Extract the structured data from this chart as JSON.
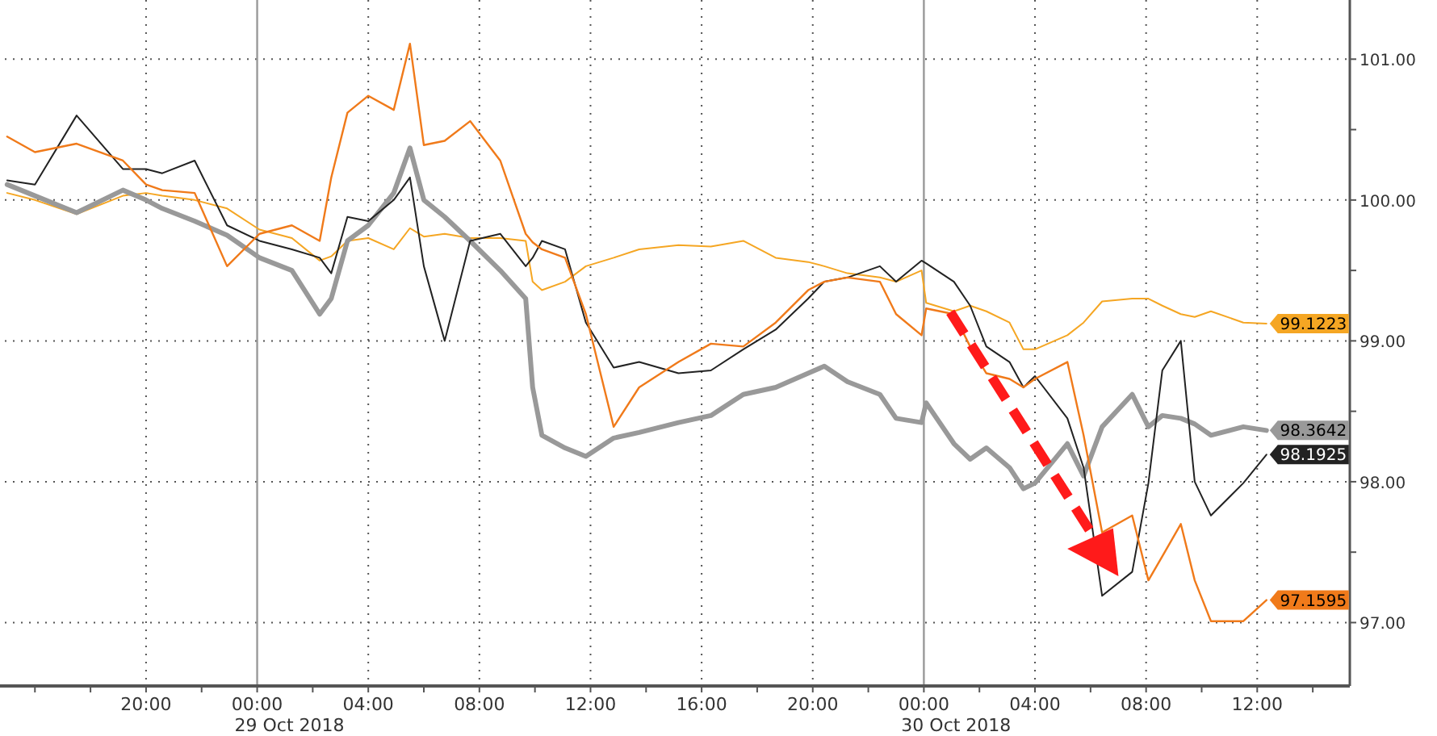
{
  "chart_data": {
    "type": "line",
    "x": [
      "2018-10-28T15:00",
      "2018-10-28T16:00",
      "2018-10-28T17:30",
      "2018-10-28T19:10",
      "2018-10-28T20:00",
      "2018-10-28T20:35",
      "2018-10-28T21:45",
      "2018-10-28T22:55",
      "2018-10-29T00:05",
      "2018-10-29T01:15",
      "2018-10-29T02:15",
      "2018-10-29T02:40",
      "2018-10-29T03:15",
      "2018-10-29T04:00",
      "2018-10-29T04:55",
      "2018-10-29T05:30",
      "2018-10-29T06:00",
      "2018-10-29T06:45",
      "2018-10-29T07:40",
      "2018-10-29T08:45",
      "2018-10-29T09:40",
      "2018-10-29T09:55",
      "2018-10-29T10:15",
      "2018-10-29T11:05",
      "2018-10-29T11:50",
      "2018-10-29T12:50",
      "2018-10-29T13:45",
      "2018-10-29T15:10",
      "2018-10-29T16:20",
      "2018-10-29T17:30",
      "2018-10-29T18:40",
      "2018-10-29T19:50",
      "2018-10-29T20:25",
      "2018-10-29T21:15",
      "2018-10-29T22:25",
      "2018-10-29T23:00",
      "2018-10-29T23:55",
      "2018-10-30T00:05",
      "2018-10-30T01:05",
      "2018-10-30T01:40",
      "2018-10-30T02:15",
      "2018-10-30T03:05",
      "2018-10-30T03:35",
      "2018-10-30T04:00",
      "2018-10-30T05:10",
      "2018-10-30T05:45",
      "2018-10-30T06:25",
      "2018-10-30T07:30",
      "2018-10-30T08:05",
      "2018-10-30T08:35",
      "2018-10-30T09:15",
      "2018-10-30T09:45",
      "2018-10-30T10:20",
      "2018-10-30T11:30",
      "2018-10-30T12:20"
    ],
    "series": [
      {
        "color": "#f5a623",
        "values": [
          100.05,
          100.0,
          99.9,
          100.03,
          100.05,
          100.03,
          100.0,
          99.94,
          99.79,
          99.73,
          99.57,
          99.6,
          99.71,
          99.73,
          99.65,
          99.8,
          99.74,
          99.76,
          99.73,
          99.73,
          99.71,
          99.42,
          99.36,
          99.42,
          99.53,
          99.59,
          99.65,
          99.68,
          99.67,
          99.71,
          99.59,
          99.56,
          99.53,
          99.48,
          99.45,
          99.42,
          99.5,
          99.27,
          99.21,
          99.25,
          99.21,
          99.13,
          98.94,
          98.94,
          99.04,
          99.13,
          99.28,
          99.3,
          99.3,
          99.25,
          99.19,
          99.17,
          99.21,
          99.13,
          99.1223
        ],
        "value_labels": [
          null,
          null,
          null,
          null,
          null,
          null,
          null,
          null,
          null,
          null,
          null,
          null,
          null,
          null,
          null,
          null,
          null,
          null,
          null,
          null,
          null,
          null,
          null,
          null,
          null,
          null,
          null,
          null,
          null,
          null,
          null,
          null,
          null,
          null,
          null,
          null,
          null,
          null,
          null,
          null,
          null,
          null,
          null,
          null,
          null,
          null,
          null,
          null,
          null,
          null,
          null,
          null,
          null,
          null,
          "99.1223"
        ]
      },
      {
        "color": "#999999",
        "values": [
          100.11,
          100.03,
          99.91,
          100.07,
          100.0,
          99.94,
          99.85,
          99.75,
          99.59,
          99.5,
          99.19,
          99.3,
          99.71,
          99.82,
          100.05,
          100.37,
          100.0,
          99.88,
          99.71,
          99.5,
          99.3,
          98.67,
          98.33,
          98.24,
          98.18,
          98.31,
          98.35,
          98.42,
          98.47,
          98.62,
          98.67,
          98.77,
          98.82,
          98.71,
          98.62,
          98.45,
          98.42,
          98.56,
          98.27,
          98.16,
          98.24,
          98.1,
          97.95,
          97.99,
          98.27,
          98.04,
          98.39,
          98.62,
          98.39,
          98.47,
          98.45,
          98.41,
          98.33,
          98.39,
          98.3642
        ],
        "value_labels": [
          null,
          null,
          null,
          null,
          null,
          null,
          null,
          null,
          null,
          null,
          null,
          null,
          null,
          null,
          null,
          null,
          null,
          null,
          null,
          null,
          null,
          null,
          null,
          null,
          null,
          null,
          null,
          null,
          null,
          null,
          null,
          null,
          null,
          null,
          null,
          null,
          null,
          null,
          null,
          null,
          null,
          null,
          null,
          null,
          null,
          null,
          null,
          null,
          null,
          null,
          null,
          null,
          null,
          null,
          "98.3642"
        ]
      },
      {
        "color": "#222222",
        "values": [
          100.14,
          100.11,
          100.6,
          100.22,
          100.22,
          100.19,
          100.28,
          99.82,
          99.71,
          99.65,
          99.59,
          99.48,
          99.88,
          99.85,
          100.0,
          100.16,
          99.53,
          99.0,
          99.71,
          99.76,
          99.53,
          99.59,
          99.71,
          99.65,
          99.13,
          98.81,
          98.85,
          98.77,
          98.79,
          98.94,
          99.08,
          99.3,
          99.42,
          99.45,
          99.53,
          99.42,
          99.57,
          99.55,
          99.42,
          99.25,
          98.96,
          98.85,
          98.67,
          98.75,
          98.45,
          98.1,
          97.19,
          97.36,
          97.99,
          98.79,
          99.0,
          98.0,
          97.76,
          97.99,
          98.1925
        ],
        "value_labels": [
          null,
          null,
          null,
          null,
          null,
          null,
          null,
          null,
          null,
          null,
          null,
          null,
          null,
          null,
          null,
          null,
          null,
          null,
          null,
          null,
          null,
          null,
          null,
          null,
          null,
          null,
          null,
          null,
          null,
          null,
          null,
          null,
          null,
          null,
          null,
          null,
          null,
          null,
          null,
          null,
          null,
          null,
          null,
          null,
          null,
          null,
          null,
          null,
          null,
          null,
          null,
          null,
          null,
          null,
          "98.1925"
        ]
      },
      {
        "color": "#f07a1a",
        "values": [
          100.45,
          100.34,
          100.4,
          100.28,
          100.11,
          100.07,
          100.05,
          99.53,
          99.76,
          99.82,
          99.71,
          100.16,
          100.62,
          100.74,
          100.64,
          101.11,
          100.39,
          100.42,
          100.56,
          100.28,
          99.76,
          99.7,
          99.65,
          99.59,
          99.19,
          98.39,
          98.67,
          98.85,
          98.98,
          98.96,
          99.13,
          99.36,
          99.42,
          99.45,
          99.42,
          99.19,
          99.04,
          99.23,
          99.19,
          98.96,
          98.77,
          98.73,
          98.67,
          98.73,
          98.85,
          98.33,
          97.64,
          97.76,
          97.3,
          97.47,
          97.7,
          97.3,
          97.01,
          97.01,
          97.1595
        ],
        "value_labels": [
          null,
          null,
          null,
          null,
          null,
          null,
          null,
          null,
          null,
          null,
          null,
          null,
          null,
          null,
          null,
          null,
          null,
          null,
          null,
          null,
          null,
          null,
          null,
          null,
          null,
          null,
          null,
          null,
          null,
          null,
          null,
          null,
          null,
          null,
          null,
          null,
          null,
          null,
          null,
          null,
          null,
          null,
          null,
          null,
          null,
          null,
          null,
          null,
          null,
          null,
          null,
          null,
          null,
          null,
          "97.1595"
        ]
      }
    ],
    "xlim": [
      "2018-10-28T14:55",
      "2018-10-30T15:20"
    ],
    "xticks": [
      {
        "value": "2018-10-28T16:00",
        "label": null
      },
      {
        "value": "2018-10-28T18:00",
        "label": null
      },
      {
        "value": "2018-10-28T20:00",
        "label": "20:00"
      },
      {
        "value": "2018-10-28T22:00",
        "label": null
      },
      {
        "value": "2018-10-29T00:00",
        "label": "00:00"
      },
      {
        "value": "2018-10-29T02:00",
        "label": null
      },
      {
        "value": "2018-10-29T04:00",
        "label": "04:00"
      },
      {
        "value": "2018-10-29T06:00",
        "label": null
      },
      {
        "value": "2018-10-29T08:00",
        "label": "08:00"
      },
      {
        "value": "2018-10-29T10:00",
        "label": null
      },
      {
        "value": "2018-10-29T12:00",
        "label": "12:00"
      },
      {
        "value": "2018-10-29T14:00",
        "label": null
      },
      {
        "value": "2018-10-29T16:00",
        "label": "16:00"
      },
      {
        "value": "2018-10-29T18:00",
        "label": null
      },
      {
        "value": "2018-10-29T20:00",
        "label": "20:00"
      },
      {
        "value": "2018-10-29T22:00",
        "label": null
      },
      {
        "value": "2018-10-30T00:00",
        "label": "00:00"
      },
      {
        "value": "2018-10-30T02:00",
        "label": null
      },
      {
        "value": "2018-10-30T04:00",
        "label": "04:00"
      },
      {
        "value": "2018-10-30T06:00",
        "label": null
      },
      {
        "value": "2018-10-30T08:00",
        "label": "08:00"
      },
      {
        "value": "2018-10-30T10:00",
        "label": null
      },
      {
        "value": "2018-10-30T12:00",
        "label": "12:00"
      },
      {
        "value": "2018-10-30T14:00",
        "label": null
      }
    ],
    "ylim": [
      96.55,
      101.42
    ],
    "yticks": [
      {
        "value": 97,
        "label": "97.00"
      },
      {
        "value": 97.5,
        "label": null
      },
      {
        "value": 98,
        "label": "98.00"
      },
      {
        "value": 98.5,
        "label": null
      },
      {
        "value": 99,
        "label": "99.00"
      },
      {
        "value": 99.5,
        "label": null
      },
      {
        "value": 100,
        "label": "100.00"
      },
      {
        "value": 100.5,
        "label": null
      },
      {
        "value": 101,
        "label": "101.00"
      }
    ],
    "grid": true,
    "annotations": [
      "29 Oct 2018",
      "30 Oct 2018"
    ],
    "line_style": "solid",
    "marker": "none"
  }
}
